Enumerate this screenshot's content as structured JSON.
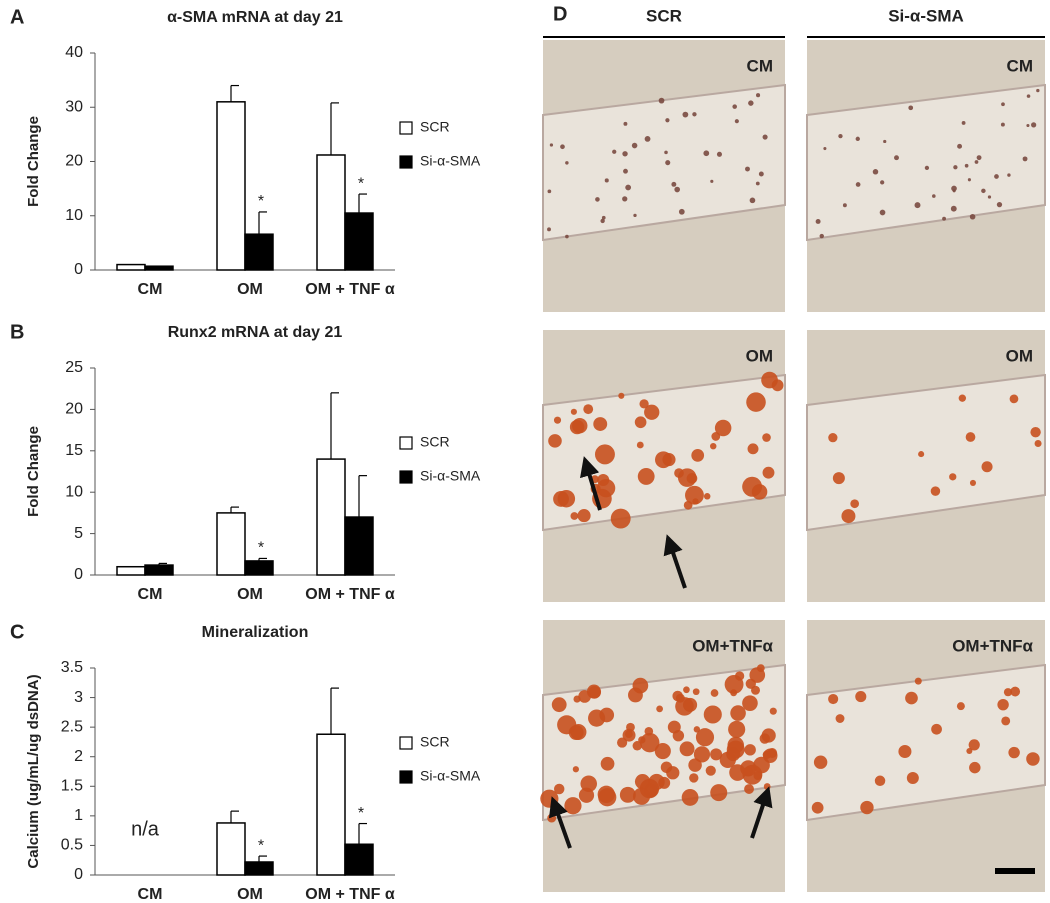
{
  "chart_data": [
    {
      "type": "bar",
      "panel_label": "A",
      "title": "α-SMA mRNA at day 21",
      "ylabel": "Fold Change",
      "categories": [
        "CM",
        "OM",
        "OM + TNF α"
      ],
      "series": [
        {
          "name": "SCR",
          "color": "#ffffff",
          "values": [
            1,
            31,
            21.2
          ],
          "errors": [
            0,
            3,
            9.6
          ],
          "markers": [
            null,
            null,
            null
          ]
        },
        {
          "name": "Si-α-SMA",
          "color": "#000000",
          "values": [
            0.7,
            6.6,
            10.5
          ],
          "errors": [
            0,
            4.1,
            3.5
          ],
          "markers": [
            null,
            "*",
            "*"
          ]
        }
      ],
      "ylim": [
        0,
        40
      ],
      "yticks": [
        0,
        10,
        20,
        30,
        40
      ]
    },
    {
      "type": "bar",
      "panel_label": "B",
      "title": "Runx2 mRNA at day 21",
      "ylabel": "Fold Change",
      "categories": [
        "CM",
        "OM",
        "OM + TNF α"
      ],
      "series": [
        {
          "name": "SCR",
          "color": "#ffffff",
          "values": [
            1,
            7.5,
            14
          ],
          "errors": [
            0,
            0.7,
            8
          ],
          "markers": [
            null,
            null,
            null
          ]
        },
        {
          "name": "Si-α-SMA",
          "color": "#000000",
          "values": [
            1.2,
            1.7,
            7
          ],
          "errors": [
            0.2,
            0.3,
            5
          ],
          "markers": [
            null,
            "*",
            null
          ]
        }
      ],
      "ylim": [
        0,
        25
      ],
      "yticks": [
        0,
        5,
        10,
        15,
        20,
        25
      ]
    },
    {
      "type": "bar",
      "panel_label": "C",
      "title": "Mineralization",
      "ylabel": "Calcium (ug/mL/ug dsDNA)",
      "categories": [
        "CM",
        "OM",
        "OM + TNF α"
      ],
      "missing_label": "n/a",
      "series": [
        {
          "name": "SCR",
          "color": "#ffffff",
          "values": [
            null,
            0.88,
            2.38
          ],
          "errors": [
            null,
            0.2,
            0.78
          ],
          "markers": [
            null,
            null,
            null
          ]
        },
        {
          "name": "Si-α-SMA",
          "color": "#000000",
          "values": [
            null,
            0.22,
            0.52
          ],
          "errors": [
            null,
            0.1,
            0.35
          ],
          "markers": [
            null,
            "*",
            "*"
          ]
        }
      ],
      "ylim": [
        0,
        3.5
      ],
      "yticks": [
        0,
        0.5,
        1,
        1.5,
        2,
        2.5,
        3,
        3.5
      ]
    }
  ],
  "panel_d": {
    "label": "D",
    "columns": [
      "SCR",
      "Si-α-SMA"
    ],
    "rows": [
      [
        "CM",
        "CM"
      ],
      [
        "OM",
        "OM"
      ],
      [
        "OM+TNFα",
        "OM+TNFα"
      ]
    ]
  }
}
